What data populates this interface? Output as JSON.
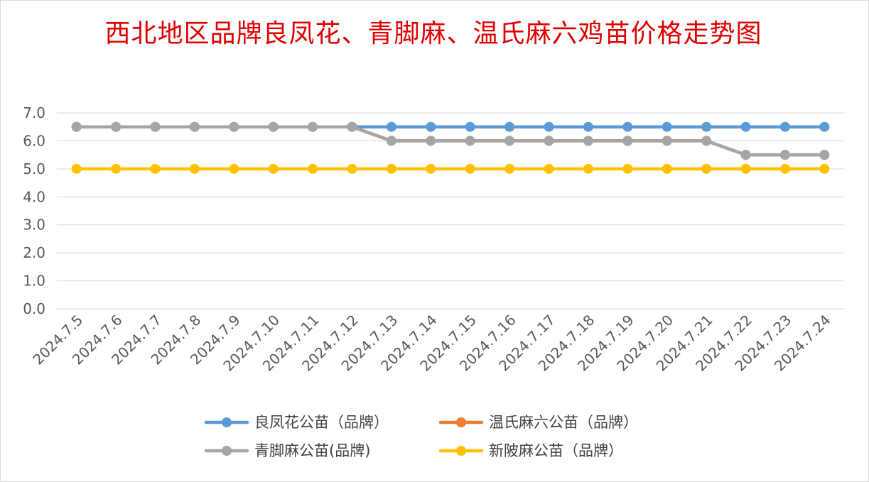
{
  "chart_data": {
    "type": "line",
    "title": "西北地区品牌良凤花、青脚麻、温氏麻六鸡苗价格走势图",
    "categories": [
      "2024.7.5",
      "2024.7.6",
      "2024.7.7",
      "2024.7.8",
      "2024.7.9",
      "2024.7.10",
      "2024.7.11",
      "2024.7.12",
      "2024.7.13",
      "2024.7.14",
      "2024.7.15",
      "2024.7.16",
      "2024.7.17",
      "2024.7.18",
      "2024.7.19",
      "2024.7.20",
      "2024.7.21",
      "2024.7.22",
      "2024.7.23",
      "2024.7.24"
    ],
    "ylim": [
      0,
      7
    ],
    "yticks": [
      "0.0",
      "1.0",
      "2.0",
      "3.0",
      "4.0",
      "5.0",
      "6.0",
      "7.0"
    ],
    "grid": true,
    "legend_position": "bottom",
    "series": [
      {
        "name": "良凤花公苗（品牌）",
        "color": "#5b9bd5",
        "values": [
          6.5,
          6.5,
          6.5,
          6.5,
          6.5,
          6.5,
          6.5,
          6.5,
          6.5,
          6.5,
          6.5,
          6.5,
          6.5,
          6.5,
          6.5,
          6.5,
          6.5,
          6.5,
          6.5,
          6.5
        ]
      },
      {
        "name": "温氏麻六公苗（品牌）",
        "color": "#ed7d31",
        "values": [
          6.5,
          6.5,
          6.5,
          6.5,
          6.5,
          6.5,
          6.5,
          6.5,
          6.0,
          6.0,
          6.0,
          6.0,
          6.0,
          6.0,
          6.0,
          6.0,
          6.0,
          5.5,
          5.5,
          5.5
        ]
      },
      {
        "name": "青脚麻公苗(品牌)",
        "color": "#a5a5a5",
        "values": [
          6.5,
          6.5,
          6.5,
          6.5,
          6.5,
          6.5,
          6.5,
          6.5,
          6.0,
          6.0,
          6.0,
          6.0,
          6.0,
          6.0,
          6.0,
          6.0,
          6.0,
          5.5,
          5.5,
          5.5
        ]
      },
      {
        "name": "新陂麻公苗（品牌）",
        "color": "#ffc000",
        "values": [
          5.0,
          5.0,
          5.0,
          5.0,
          5.0,
          5.0,
          5.0,
          5.0,
          5.0,
          5.0,
          5.0,
          5.0,
          5.0,
          5.0,
          5.0,
          5.0,
          5.0,
          5.0,
          5.0,
          5.0
        ]
      }
    ]
  }
}
